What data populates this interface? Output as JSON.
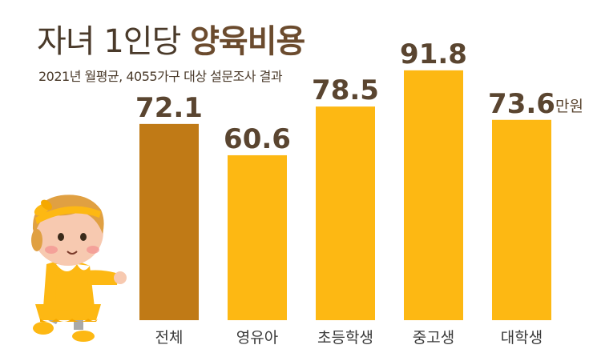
{
  "header": {
    "title_plain": "자녀 1인당",
    "title_bold": "양육비용",
    "subtitle": "2021년 월평균, 4055가구 대상 설문조사 결과"
  },
  "chart_data": {
    "type": "bar",
    "title": "자녀 1인당 양육비용",
    "subtitle": "2021년 월평균, 4055가구 대상 설문조사 결과",
    "categories": [
      "전체",
      "영유아",
      "초등학생",
      "중고생",
      "대학생"
    ],
    "values": [
      72.1,
      60.6,
      78.5,
      91.8,
      73.6
    ],
    "value_labels": [
      "72.1",
      "60.6",
      "78.5",
      "91.8",
      "73.6"
    ],
    "unit": "만원",
    "xlabel": "",
    "ylabel": "",
    "ylim": [
      0,
      100
    ],
    "grid": false,
    "colors": {
      "highlight": "#c07a16",
      "bar": "#fdb813",
      "value_text": "#5a4530",
      "category_text": "#3a3a3a"
    },
    "highlight_index": 0
  },
  "decoration": {
    "illustration": "baby-girl-illustration"
  }
}
